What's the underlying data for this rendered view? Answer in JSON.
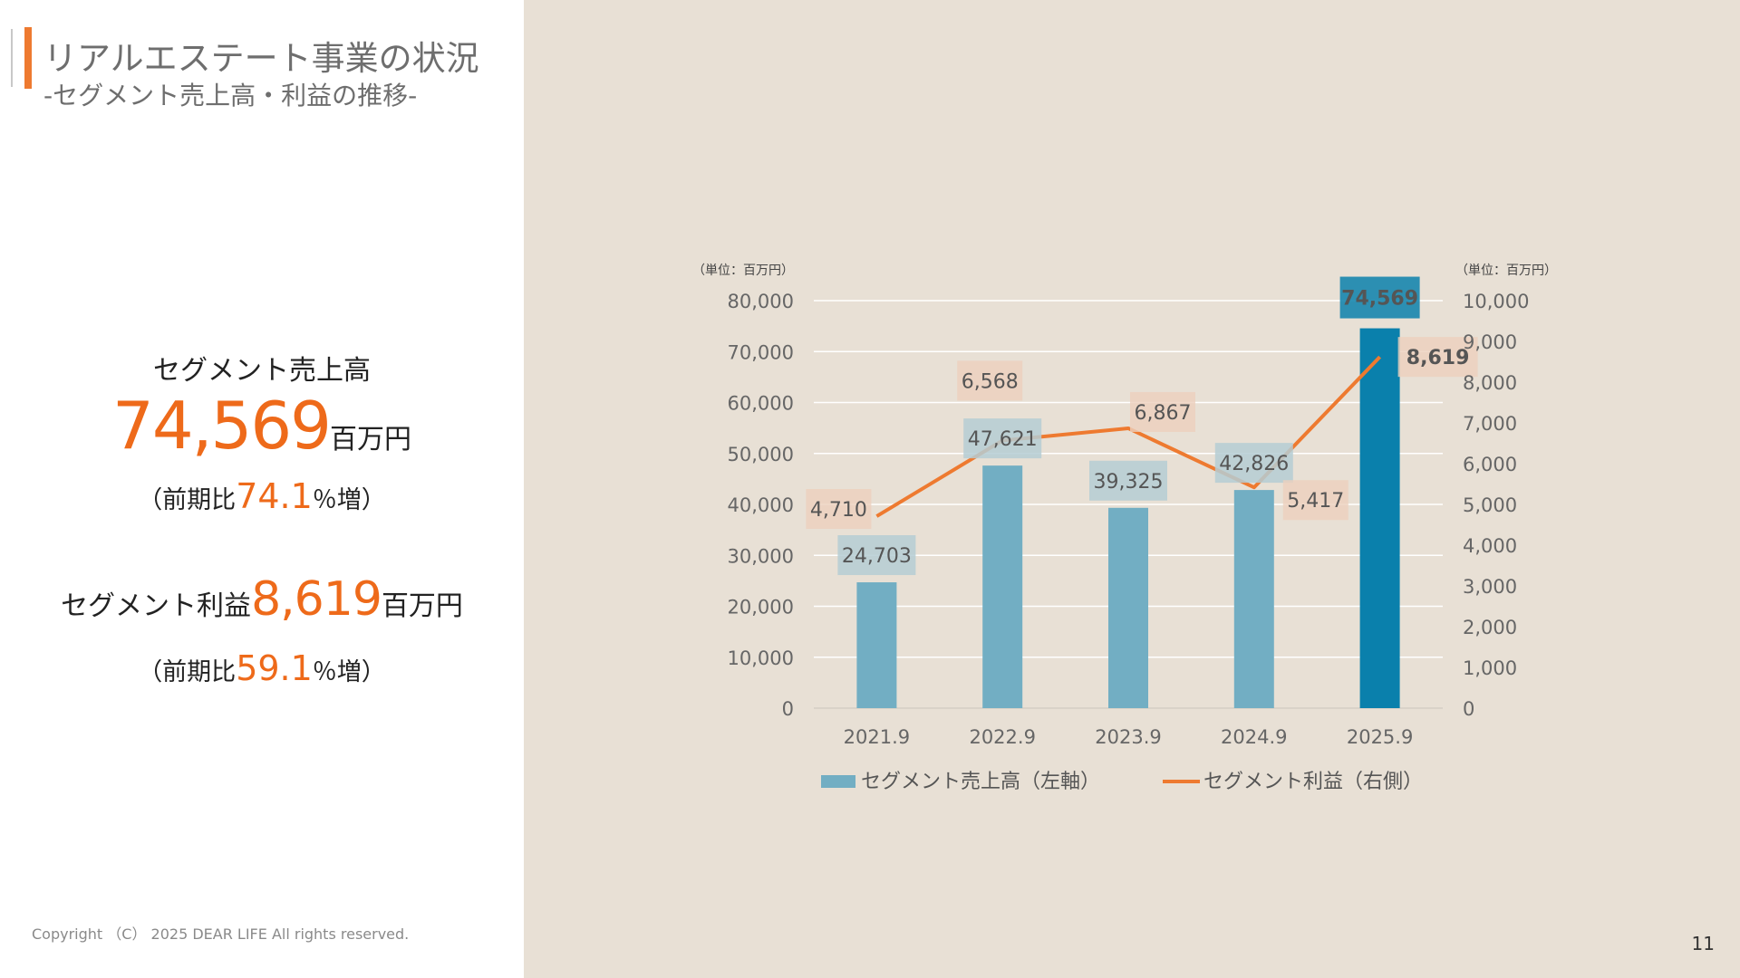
{
  "header": {
    "title": "リアルエステート事業の状況",
    "subtitle": "-セグメント売上高・利益の推移-"
  },
  "kpi": {
    "sales_label": "セグメント売上高",
    "sales_value": "74,569",
    "sales_unit": "百万円",
    "sales_growth_prefix": "（前期比",
    "sales_growth_value": "74.1",
    "sales_growth_suffix": "％増）",
    "profit_label": "セグメント利益",
    "profit_value": "8,619",
    "profit_unit": "百万円",
    "profit_growth_prefix": "（前期比",
    "profit_growth_value": "59.1",
    "profit_growth_suffix": "％増）"
  },
  "footer": {
    "copyright": "Copyright （C） 2025 DEAR LIFE All rights reserved.",
    "page_number": "11"
  },
  "colors": {
    "accent": "#ee7a30",
    "bar": "#72aec3",
    "bar_highlight": "#0a80ac",
    "line": "#ee7a30",
    "bar_label_bg": "#b5cdd3",
    "line_label_bg": "#eccfbd"
  },
  "chart_data": {
    "type": "bar",
    "categories": [
      "2021.9",
      "2022.9",
      "2023.9",
      "2024.9",
      "2025.9"
    ],
    "series": [
      {
        "name": "セグメント売上高（左軸）",
        "type": "bar",
        "axis": "left",
        "values": [
          24703,
          47621,
          39325,
          42826,
          74569
        ],
        "labels": [
          "24,703",
          "47,621",
          "39,325",
          "42,826",
          "74,569"
        ]
      },
      {
        "name": "セグメント利益（右側）",
        "type": "line",
        "axis": "right",
        "values": [
          4710,
          6568,
          6867,
          5417,
          8619
        ],
        "labels": [
          "4,710",
          "6,568",
          "6,867",
          "5,417",
          "8,619"
        ]
      }
    ],
    "left_axis": {
      "unit_label": "（単位：百万円）",
      "ylim": [
        0,
        80000
      ],
      "ticks": [
        "0",
        "10,000",
        "20,000",
        "30,000",
        "40,000",
        "50,000",
        "60,000",
        "70,000",
        "80,000"
      ]
    },
    "right_axis": {
      "unit_label": "（単位：百万円）",
      "ylim": [
        0,
        10000
      ],
      "ticks": [
        "0",
        "1,000",
        "2,000",
        "3,000",
        "4,000",
        "5,000",
        "6,000",
        "7,000",
        "8,000",
        "9,000",
        "10,000"
      ]
    },
    "grid": true,
    "legend": "bottom",
    "highlight_index": 4
  }
}
